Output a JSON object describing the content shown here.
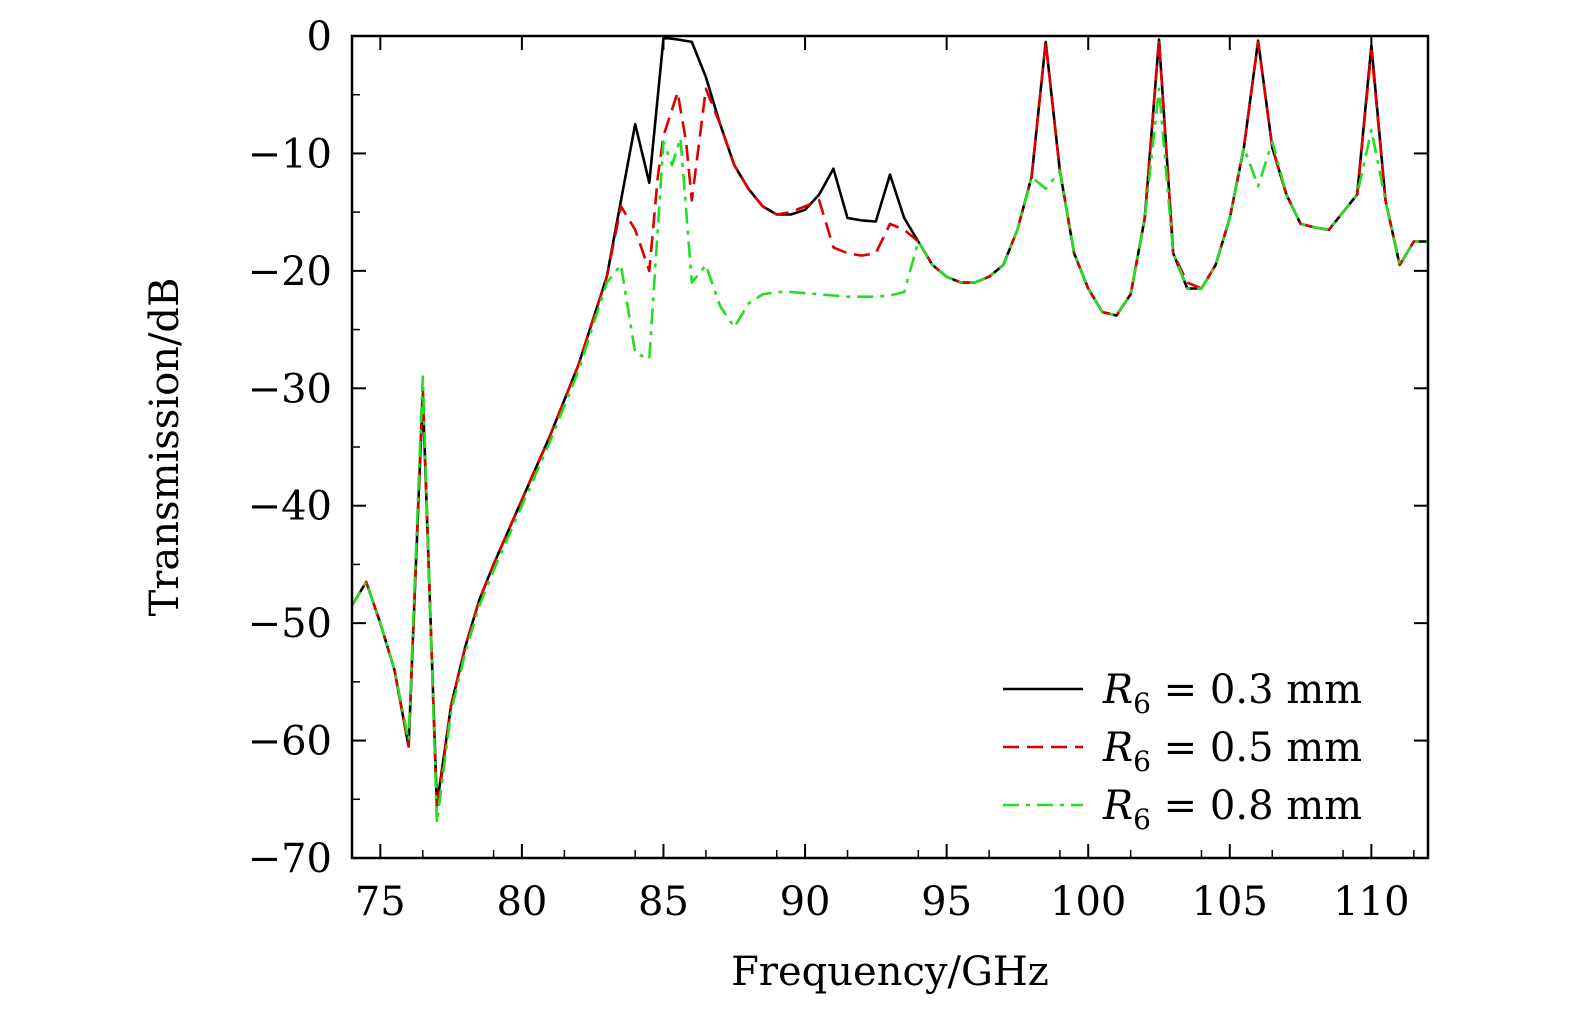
{
  "chart_data": {
    "type": "line",
    "title": "",
    "xlabel": "Frequency/GHz",
    "ylabel": "Transmission/dB",
    "xlim": [
      74,
      112
    ],
    "ylim": [
      -70,
      0
    ],
    "xticks": [
      75,
      80,
      85,
      90,
      95,
      100,
      105,
      110
    ],
    "yticks": [
      0,
      -10,
      -20,
      -30,
      -40,
      -50,
      -60,
      -70
    ],
    "xtick_labels": [
      "75",
      "80",
      "85",
      "90",
      "95",
      "100",
      "105",
      "110"
    ],
    "ytick_labels": [
      "0",
      "−10",
      "−20",
      "−30",
      "−40",
      "−50",
      "−60",
      "−70"
    ],
    "grid": false,
    "legend_position": "bottom-right",
    "series": [
      {
        "name": "R6 = 0.3 mm",
        "legend_var": "R",
        "legend_sub": "6",
        "legend_rest": " = 0.3 mm",
        "color": "#000000",
        "dash": "solid",
        "x": [
          74,
          74.5,
          75,
          75.5,
          76,
          76.5,
          77,
          77.5,
          78,
          78.5,
          79,
          80,
          81,
          82,
          83,
          83.5,
          84,
          84.5,
          85,
          85.2,
          85.5,
          86,
          86.5,
          87,
          87.5,
          88,
          88.5,
          89,
          89.5,
          90,
          90.5,
          91,
          91.5,
          92,
          92.5,
          93,
          93.5,
          94,
          94.5,
          95,
          95.5,
          96,
          96.5,
          97,
          97.5,
          98,
          98.5,
          99,
          99.5,
          100,
          100.5,
          101,
          101.5,
          102,
          102.5,
          103,
          103.5,
          104,
          104.5,
          105,
          105.5,
          106,
          106.5,
          107,
          107.5,
          108,
          108.5,
          109,
          109.5,
          110,
          110.5,
          111,
          111.5,
          112
        ],
        "y": [
          -48.5,
          -46.5,
          -50,
          -54,
          -60.5,
          -30.5,
          -65.5,
          -57,
          -52,
          -48,
          -45,
          -39.5,
          -34,
          -28,
          -20.5,
          -14,
          -7.5,
          -12.5,
          -0.2,
          -0.2,
          -0.3,
          -0.5,
          -3.5,
          -7.5,
          -11,
          -13,
          -14.5,
          -15.2,
          -15.2,
          -14.8,
          -13.5,
          -11.3,
          -15.5,
          -15.7,
          -15.8,
          -11.8,
          -15.5,
          -17.5,
          -19.5,
          -20.5,
          -21,
          -21,
          -20.5,
          -19.5,
          -16.5,
          -12,
          -0.5,
          -11.5,
          -18.5,
          -21.5,
          -23.5,
          -23.8,
          -22,
          -15.5,
          -0.3,
          -18.5,
          -21.5,
          -21.5,
          -19.5,
          -15.5,
          -9.5,
          -0.4,
          -9.5,
          -13.5,
          -16,
          -16.3,
          -16.5,
          -15,
          -13.5,
          -0.8,
          -14,
          -19.5,
          -17.5,
          -17.5
        ]
      },
      {
        "name": "R6 = 0.5 mm",
        "legend_var": "R",
        "legend_sub": "6",
        "legend_rest": " = 0.5 mm",
        "color": "#dd0000",
        "dash": "dashed",
        "x": [
          74,
          74.5,
          75,
          75.5,
          76,
          76.5,
          77,
          77.5,
          78,
          78.5,
          79,
          80,
          81,
          82,
          83,
          83.5,
          84,
          84.5,
          84.8,
          85,
          85.5,
          85.8,
          86,
          86.5,
          87,
          87.5,
          88,
          88.5,
          89,
          89.5,
          90,
          90.5,
          91,
          91.5,
          92,
          92.5,
          93,
          93.5,
          94,
          94.5,
          95,
          95.5,
          96,
          96.5,
          97,
          97.5,
          98,
          98.5,
          99,
          99.5,
          100,
          100.5,
          101,
          101.5,
          102,
          102.5,
          103,
          103.5,
          104,
          104.5,
          105,
          105.5,
          106,
          106.5,
          107,
          107.5,
          108,
          108.5,
          109,
          109.5,
          110,
          110.5,
          111,
          111.5,
          112
        ],
        "y": [
          -48.5,
          -46.5,
          -50,
          -54,
          -60.5,
          -30,
          -66,
          -57,
          -52,
          -48,
          -45,
          -39.5,
          -34,
          -28,
          -20.5,
          -14.5,
          -16.5,
          -20,
          -12,
          -8.5,
          -4.8,
          -9,
          -14,
          -4.5,
          -7.5,
          -11,
          -13,
          -14.5,
          -15.2,
          -15,
          -14.5,
          -14,
          -18,
          -18.5,
          -18.7,
          -18.5,
          -16,
          -16.5,
          -17.5,
          -19.5,
          -20.5,
          -21,
          -21,
          -20.5,
          -19.5,
          -16.5,
          -12,
          -0.5,
          -11.5,
          -18.5,
          -21.5,
          -23.5,
          -23.8,
          -22,
          -15.5,
          -0.3,
          -18.5,
          -21,
          -21.5,
          -19.5,
          -15.5,
          -9.5,
          -0.5,
          -9.5,
          -13.5,
          -16,
          -16.3,
          -16.5,
          -15,
          -13.5,
          -1.2,
          -14,
          -19.5,
          -17.5,
          -17.5
        ]
      },
      {
        "name": "R6 = 0.8 mm",
        "legend_var": "R",
        "legend_sub": "6",
        "legend_rest": " = 0.8 mm",
        "color": "#22dd22",
        "dash": "dashdot",
        "x": [
          74,
          74.5,
          75,
          75.5,
          76,
          76.5,
          77,
          77.5,
          78,
          78.5,
          79,
          80,
          81,
          82,
          83,
          83.5,
          84,
          84.5,
          85,
          85.3,
          85.6,
          86,
          86.5,
          87,
          87.5,
          88,
          88.5,
          89,
          89.5,
          90,
          90.5,
          91,
          91.5,
          92,
          92.5,
          93,
          93.5,
          94,
          94.5,
          95,
          95.5,
          96,
          96.5,
          97,
          97.5,
          98,
          98.5,
          99,
          99.5,
          100,
          100.5,
          101,
          101.5,
          102,
          102.5,
          103,
          103.5,
          104,
          104.5,
          105,
          105.5,
          106,
          106.5,
          107,
          107.5,
          108,
          108.5,
          109,
          109.5,
          110,
          110.5,
          111,
          111.5,
          112
        ],
        "y": [
          -48.5,
          -46.5,
          -50,
          -54,
          -60,
          -29,
          -67,
          -57.5,
          -52.5,
          -48.5,
          -45.5,
          -40,
          -34.5,
          -28.5,
          -21,
          -19.5,
          -27,
          -27.5,
          -9,
          -11,
          -8.7,
          -21,
          -19.5,
          -23,
          -24.8,
          -22.8,
          -22,
          -21.8,
          -21.8,
          -21.9,
          -22,
          -22.1,
          -22.2,
          -22.2,
          -22.2,
          -22.1,
          -21.8,
          -17.5,
          -19.5,
          -20.5,
          -21,
          -21,
          -20.5,
          -19.5,
          -16.5,
          -12,
          -13,
          -11.5,
          -18.5,
          -21.5,
          -23.5,
          -23.8,
          -22,
          -15.5,
          -4.5,
          -18.5,
          -21.5,
          -21.5,
          -19.5,
          -15.5,
          -9.5,
          -12.8,
          -9,
          -13.5,
          -16,
          -16.3,
          -16.5,
          -15,
          -13.5,
          -8,
          -14,
          -19.5,
          -17.5,
          -17.5
        ]
      }
    ]
  }
}
